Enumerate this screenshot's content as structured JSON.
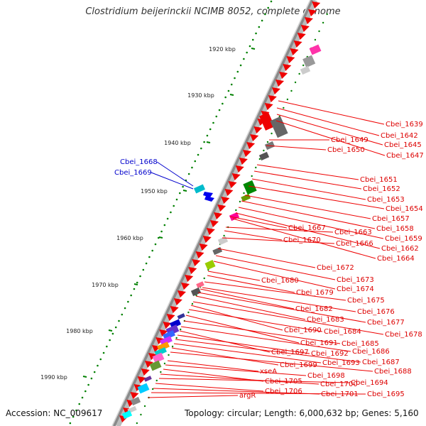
{
  "title": "Clostridium beijerinckii NCIMB 8052, complete genome",
  "footer": {
    "accession": "Accession: NC_009617",
    "summary": "Topology: circular; Length: 6,000,632 bp; Genes: 5,160"
  },
  "colors": {
    "forward_gene": "#ee0000",
    "gene_label": "#dd0000",
    "reverse_label": "#0000cc",
    "tick": "#008000",
    "backbone": "#888888"
  },
  "kbp_ticks": [
    "1920 kbp",
    "1930 kbp",
    "1940 kbp",
    "1950 kbp",
    "1960 kbp",
    "1970 kbp",
    "1980 kbp",
    "1990 kbp"
  ],
  "reverse_genes": [
    "Cbei_1668",
    "Cbei_1669"
  ],
  "forward_genes": [
    "Cbei_1639",
    "Cbei_1642",
    "Cbei_1645",
    "Cbei_1647",
    "Cbei_1649",
    "Cbei_1650",
    "Cbei_1651",
    "Cbei_1652",
    "Cbei_1653",
    "Cbei_1654",
    "Cbei_1657",
    "Cbei_1658",
    "Cbei_1659",
    "Cbei_1662",
    "Cbei_1664",
    "Cbei_1667",
    "Cbei_1663",
    "Cbei_1670",
    "Cbei_1666",
    "Cbei_1672",
    "Cbei_1673",
    "Cbei_1674",
    "Cbei_1680",
    "Cbei_1679",
    "Cbei_1675",
    "Cbei_1676",
    "Cbei_1682",
    "Cbei_1677",
    "Cbei_1683",
    "Cbei_1678",
    "Cbei_1690",
    "Cbei_1684",
    "Cbei_1691",
    "Cbei_1685",
    "Cbei_1686",
    "Cbei_1697",
    "Cbei_1692",
    "Cbei_1687",
    "Cbei_1693",
    "Cbei_1699",
    "Cbei_1688",
    "xseA",
    "Cbei_1698",
    "Cbei_1705",
    "Cbei_1700",
    "Cbei_1694",
    "Cbei_1706",
    "Cbei_1701",
    "Cbei_1695",
    "argR"
  ]
}
